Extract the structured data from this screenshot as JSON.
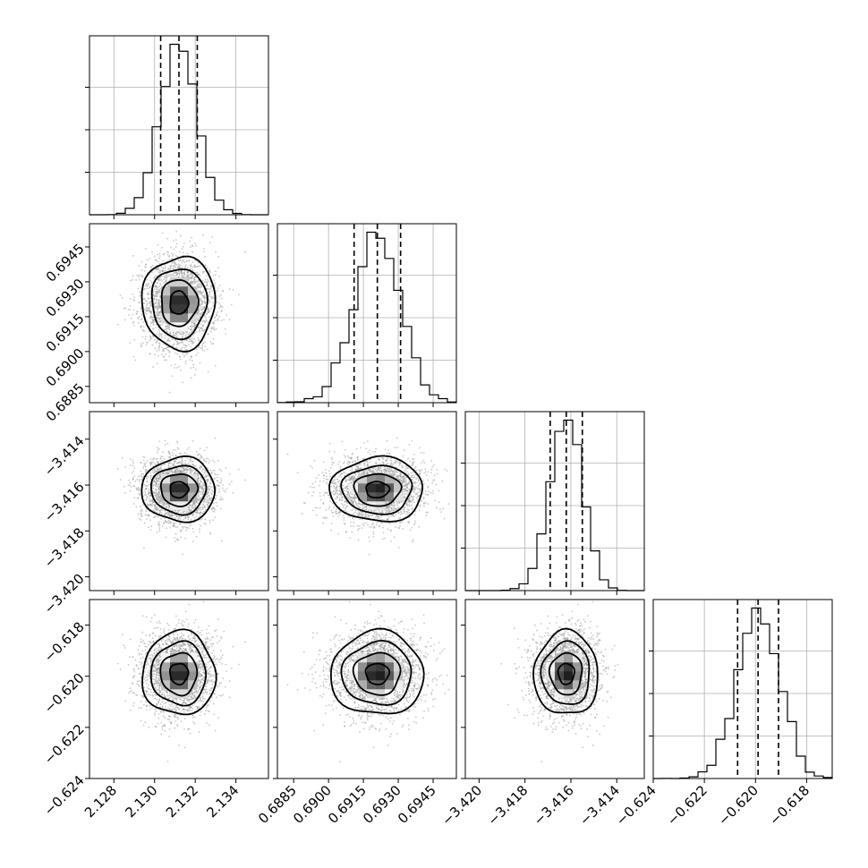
{
  "chart_data": {
    "type": "corner",
    "grid": true,
    "parameters": [
      {
        "mean": 2.1312,
        "std": 0.0009,
        "range": [
          2.1268,
          2.1356
        ],
        "ticks": [
          2.128,
          2.13,
          2.132,
          2.134
        ],
        "tick_labels": [
          "2.128",
          "2.130",
          "2.132",
          "2.134"
        ],
        "quantiles": [
          2.1303,
          2.1312,
          2.1321
        ]
      },
      {
        "mean": 0.6921,
        "std": 0.001,
        "range": [
          0.6878,
          0.6955
        ],
        "ticks": [
          0.6885,
          0.69,
          0.6915,
          0.693,
          0.6945
        ],
        "tick_labels": [
          "0.6885",
          "0.6900",
          "0.6915",
          "0.6930",
          "0.6945"
        ],
        "quantiles": [
          0.6911,
          0.6921,
          0.6931
        ]
      },
      {
        "mean": -3.4162,
        "std": 0.0007,
        "range": [
          -3.4206,
          -3.4128
        ],
        "ticks": [
          -3.42,
          -3.418,
          -3.416,
          -3.414
        ],
        "tick_labels": [
          "−3.420",
          "−3.418",
          "−3.416",
          "−3.414"
        ],
        "quantiles": [
          -3.4169,
          -3.4162,
          -3.4155
        ]
      },
      {
        "mean": -0.6199,
        "std": 0.00082,
        "range": [
          -0.624,
          -0.617
        ],
        "ticks": [
          -0.624,
          -0.622,
          -0.62,
          -0.618
        ],
        "tick_labels": [
          "−0.624",
          "−0.622",
          "−0.620",
          "−0.618"
        ],
        "quantiles": [
          -0.6207,
          -0.6199,
          -0.6191
        ]
      }
    ],
    "histogram_bins": 20,
    "contour_levels": 4
  }
}
